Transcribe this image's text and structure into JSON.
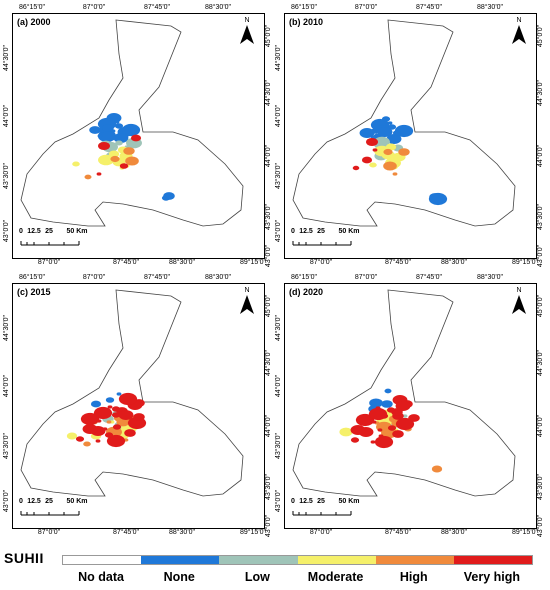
{
  "panels": [
    {
      "label": "(a) 2000",
      "north_letter": "N",
      "top_ticks": [
        "86°15'0\"",
        "87°0'0\"",
        "87°45'0\"",
        "88°30'0\""
      ],
      "bottom_ticks": [
        "87°0'0\"",
        "87°45'0\"",
        "88°30'0\"",
        "89°15'0\""
      ],
      "left_ticks": [
        "44°30'0\"",
        "44°0'0\"",
        "43°30'0\"",
        "43°0'0\""
      ],
      "right_ticks": [
        "45°0'0\"",
        "44°30'0\"",
        "44°0'0\"",
        "43°30'0\"",
        "43°0'0\""
      ],
      "scale_labels": [
        "0",
        "12.5",
        "25",
        "50 Km"
      ],
      "classes": {
        "none": "heavy",
        "low": "medium",
        "moderate": "medium",
        "high": "light",
        "very_high": "trace"
      }
    },
    {
      "label": "(b) 2010",
      "north_letter": "N",
      "top_ticks": [
        "86°15'0\"",
        "87°0'0\"",
        "87°45'0\"",
        "88°30'0\""
      ],
      "bottom_ticks": [
        "87°0'0\"",
        "87°45'0\"",
        "88°30'0\"",
        "89°15'0\""
      ],
      "left_ticks": [
        "44°30'0\"",
        "44°0'0\"",
        "43°30'0\"",
        "43°0'0\""
      ],
      "right_ticks": [
        "45°0'0\"",
        "44°30'0\"",
        "44°0'0\"",
        "43°30'0\"",
        "43°0'0\""
      ],
      "scale_labels": [
        "0",
        "12.5",
        "25",
        "50 Km"
      ],
      "classes": {
        "none": "heavy",
        "low": "medium",
        "moderate": "medium",
        "high": "light",
        "very_high": "trace"
      }
    },
    {
      "label": "(c) 2015",
      "north_letter": "N",
      "top_ticks": [
        "86°15'0\"",
        "87°0'0\"",
        "87°45'0\"",
        "88°30'0\""
      ],
      "bottom_ticks": [
        "87°0'0\"",
        "87°45'0\"",
        "88°30'0\"",
        "89°15'0\""
      ],
      "left_ticks": [
        "44°30'0\"",
        "44°0'0\"",
        "43°30'0\"",
        "43°0'0\""
      ],
      "right_ticks": [
        "45°0'0\"",
        "44°30'0\"",
        "44°0'0\"",
        "43°30'0\"",
        "43°0'0\""
      ],
      "scale_labels": [
        "0",
        "12.5",
        "25",
        "50 Km"
      ],
      "classes": {
        "none": "trace",
        "low": "light",
        "moderate": "medium",
        "high": "medium",
        "very_high": "heavy"
      }
    },
    {
      "label": "(d) 2020",
      "north_letter": "N",
      "top_ticks": [
        "86°15'0\"",
        "87°0'0\"",
        "87°45'0\"",
        "88°30'0\""
      ],
      "bottom_ticks": [
        "87°0'0\"",
        "87°45'0\"",
        "88°30'0\"",
        "89°15'0\""
      ],
      "left_ticks": [
        "44°30'0\"",
        "44°0'0\"",
        "43°30'0\"",
        "43°0'0\""
      ],
      "right_ticks": [
        "45°0'0\"",
        "44°30'0\"",
        "44°0'0\"",
        "43°30'0\"",
        "43°0'0\""
      ],
      "scale_labels": [
        "0",
        "12.5",
        "25",
        "50 Km"
      ],
      "classes": {
        "none": "light",
        "low": "light",
        "moderate": "medium",
        "high": "medium",
        "very_high": "heavy"
      }
    }
  ],
  "legend": {
    "title": "SUHII",
    "items": [
      {
        "key": "no_data",
        "label": "No data",
        "color": "#ffffff"
      },
      {
        "key": "none",
        "label": "None",
        "color": "#1f78d8"
      },
      {
        "key": "low",
        "label": "Low",
        "color": "#9fc4b8"
      },
      {
        "key": "moderate",
        "label": "Moderate",
        "color": "#f5f06a"
      },
      {
        "key": "high",
        "label": "High",
        "color": "#f08a3c"
      },
      {
        "key": "very_high",
        "label": "Very high",
        "color": "#e01b1b"
      }
    ]
  }
}
